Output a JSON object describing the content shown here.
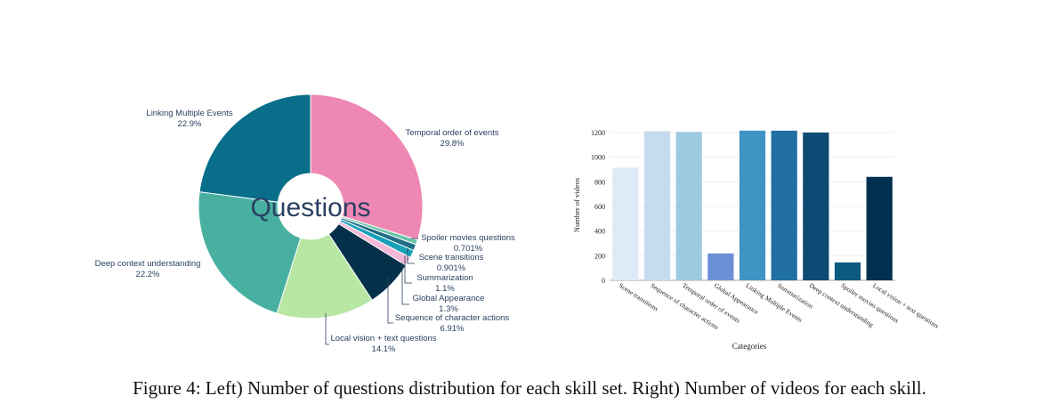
{
  "chart_data": [
    {
      "type": "pie",
      "hole": true,
      "center_text": "Questions",
      "slices": [
        {
          "label": "Temporal order of events",
          "percent_text": "29.8%",
          "value": 29.8,
          "color": "#ee87b4"
        },
        {
          "label": "Spoiler movies questions",
          "percent_text": "0.701%",
          "value": 0.701,
          "color": "#6cc5a8"
        },
        {
          "label": "Scene transitions",
          "percent_text": "0.901%",
          "value": 0.901,
          "color": "#1f6f87"
        },
        {
          "label": "Summarization",
          "percent_text": "1.1%",
          "value": 1.1,
          "color": "#17a1b8"
        },
        {
          "label": "Global Appearance",
          "percent_text": "1.3%",
          "value": 1.3,
          "color": "#f3b8d5"
        },
        {
          "label": "Sequence of character actions",
          "percent_text": "6.91%",
          "value": 6.91,
          "color": "#05304a"
        },
        {
          "label": "Local vision + text questions",
          "percent_text": "14.1%",
          "value": 14.1,
          "color": "#b8e6a3"
        },
        {
          "label": "Deep context understanding",
          "percent_text": "22.2%",
          "value": 22.2,
          "color": "#48b0a1"
        },
        {
          "label": "Linking Multiple Events",
          "percent_text": "22.9%",
          "value": 22.9,
          "color": "#086e89"
        }
      ]
    },
    {
      "type": "bar",
      "categories": [
        "Scene transitions",
        "Sequence of character actions",
        "Temporal order of events",
        "Global Appearance",
        "Linking Multiple Events",
        "Summarization",
        "Deep context understanding",
        "Spoiler movies questions",
        "Local vision + text questions"
      ],
      "values": [
        915,
        1210,
        1205,
        218,
        1215,
        1215,
        1200,
        145,
        840
      ],
      "colors": [
        "#deebf7",
        "#c6dbef",
        "#9ecae1",
        "#6d8fd6",
        "#3f94c4",
        "#226fa3",
        "#0e4b74",
        "#0c5b7f",
        "#003050"
      ],
      "xlabel": "Categories",
      "ylabel": "Number of videos",
      "ylim": [
        0,
        1250
      ],
      "yticks": [
        0,
        200,
        400,
        600,
        800,
        1000,
        1200
      ],
      "grid": true
    }
  ],
  "caption": "Figure 4: Left) Number of questions distribution for each skill set. Right) Number of videos for each skill."
}
